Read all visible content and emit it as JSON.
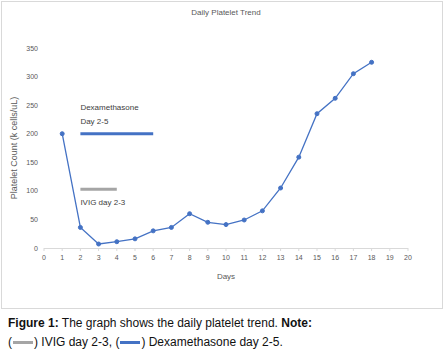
{
  "chart_data": {
    "type": "line",
    "title": "Daily Platelet Trend",
    "x_label": "Days",
    "y_label": "Platelet Count (k cells/uL)",
    "x": [
      1,
      2,
      3,
      4,
      5,
      6,
      7,
      8,
      9,
      10,
      11,
      12,
      13,
      14,
      15,
      16,
      17,
      18
    ],
    "values": [
      200,
      36,
      7,
      11,
      16,
      30,
      36,
      60,
      45,
      41,
      49,
      65,
      105,
      159,
      235,
      262,
      305,
      325
    ],
    "color": "#4472c4",
    "marker": "circle",
    "xlim": [
      0,
      20
    ],
    "xticks": [
      0,
      1,
      2,
      3,
      4,
      5,
      6,
      7,
      8,
      9,
      10,
      11,
      12,
      13,
      14,
      15,
      16,
      17,
      18,
      19,
      20
    ],
    "ylim": [
      0,
      350
    ],
    "yticks": [
      0,
      50,
      100,
      150,
      200,
      250,
      300,
      350
    ],
    "grid": false,
    "annotations": [
      {
        "label": [
          "Dexamethasone",
          "Day 2-5"
        ],
        "x": [
          2,
          6
        ],
        "y": 200,
        "color": "#4472c4",
        "position": "above"
      },
      {
        "label": [
          "IVIG day 2-3"
        ],
        "x": [
          2,
          4
        ],
        "y": 103,
        "color": "#a5a5a5",
        "position": "below"
      }
    ],
    "caption": {
      "figure": "Figure 1:",
      "text": "The graph shows the daily platelet trend.",
      "note": "Note:",
      "items": [
        {
          "prefix": "(",
          "text": ") IVIG day 2-3,",
          "color": "#a5a5a5"
        },
        {
          "prefix": "(",
          "text": ") Dexamethasone day 2-5.",
          "color": "#4472c4"
        }
      ]
    }
  }
}
